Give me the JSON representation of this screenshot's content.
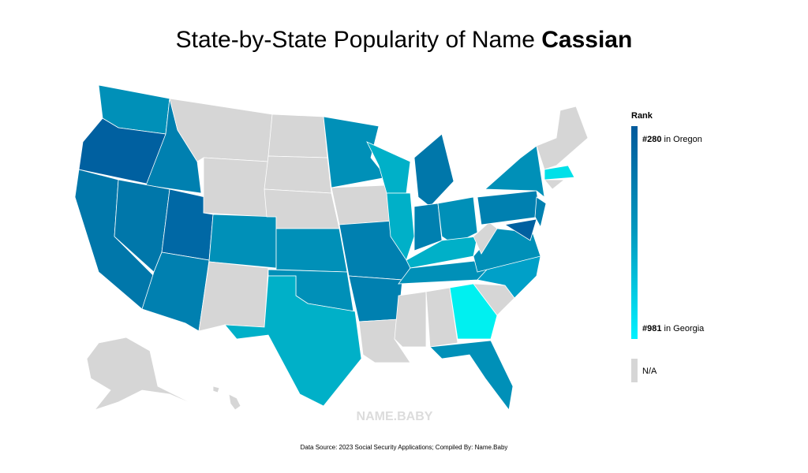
{
  "title": {
    "text": "State-by-State Popularity of Name ",
    "name": "Cassian"
  },
  "legend": {
    "title": "Rank",
    "top": {
      "rank": "#280",
      "label": " in Oregon"
    },
    "bottom": {
      "rank": "#981",
      "label": " in Georgia"
    },
    "na": "N/A"
  },
  "watermark": "NAME.BABY",
  "source": "Data Source: 2023 Social Security Applications; Compiled By: Name.Baby"
}
